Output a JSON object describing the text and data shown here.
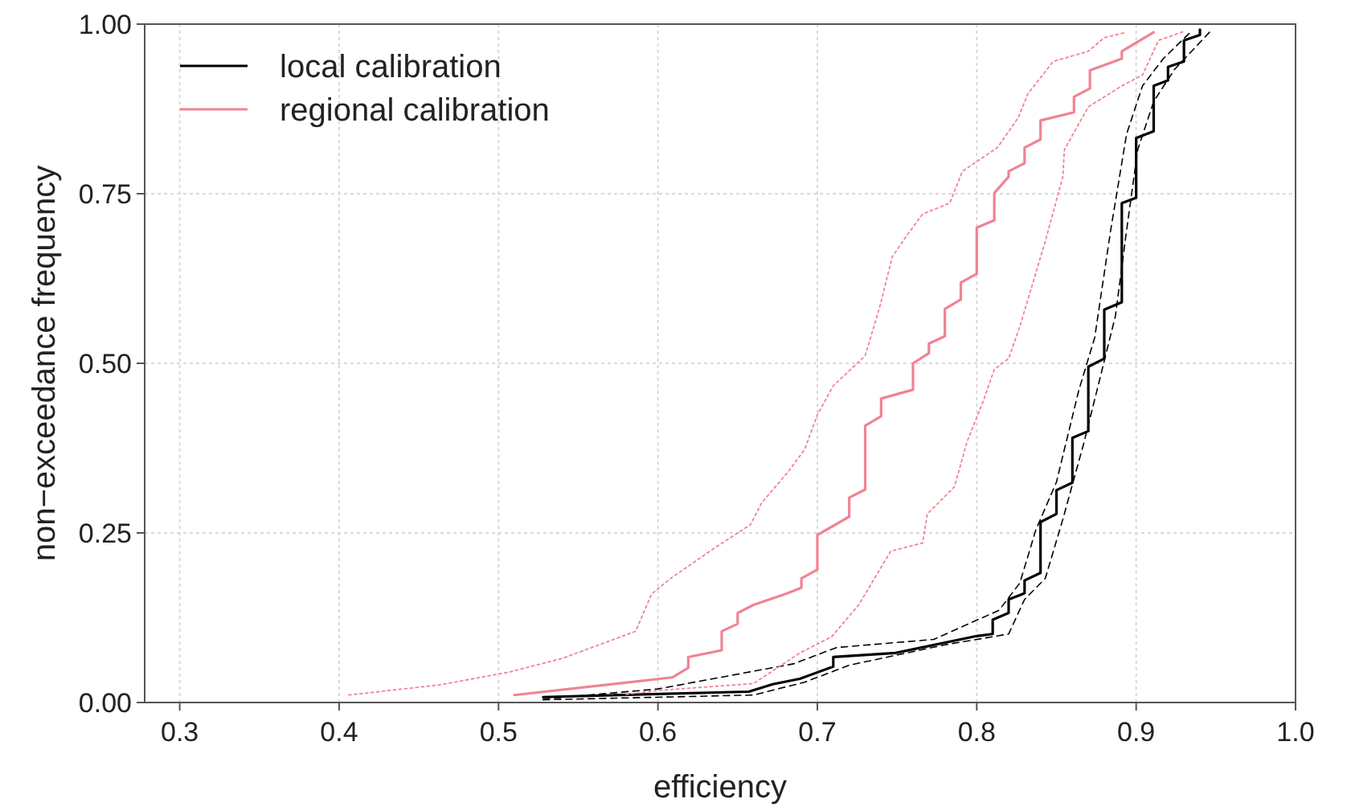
{
  "chart_data": {
    "type": "line",
    "xlabel": "efficiency",
    "ylabel": "non−exceedance frequency",
    "xlim": [
      0.278,
      1.0
    ],
    "ylim": [
      0,
      1
    ],
    "xticks": [
      0.3,
      0.4,
      0.5,
      0.6,
      0.7,
      0.8,
      0.9,
      {
        "value": 1.0,
        "label": "1.0"
      }
    ],
    "yticks": [
      {
        "value": 0,
        "label": "0.00"
      },
      {
        "value": 0.25,
        "label": "0.25"
      },
      {
        "value": 0.5,
        "label": "0.50"
      },
      {
        "value": 0.75,
        "label": "0.75"
      },
      {
        "value": 1,
        "label": "1.00"
      }
    ],
    "grid": true,
    "legend": "top left",
    "marker": "none",
    "series": [
      {
        "name": "local calibration",
        "color": "#000000",
        "line_style": "solid",
        "x": [
          0.528,
          0.657,
          0.672,
          0.689,
          0.71,
          0.71,
          0.749,
          0.8,
          0.81,
          0.81,
          0.82,
          0.82,
          0.83,
          0.83,
          0.84,
          0.84,
          0.85,
          0.85,
          0.86,
          0.86,
          0.87,
          0.87,
          0.88,
          0.88,
          0.891,
          0.891,
          0.9,
          0.9,
          0.911,
          0.911,
          0.92,
          0.92,
          0.93,
          0.93,
          0.94,
          0.94
        ],
        "values": [
          0.008,
          0.016,
          0.027,
          0.035,
          0.053,
          0.067,
          0.073,
          0.098,
          0.101,
          0.122,
          0.132,
          0.152,
          0.161,
          0.18,
          0.191,
          0.266,
          0.278,
          0.313,
          0.324,
          0.39,
          0.4,
          0.495,
          0.507,
          0.579,
          0.59,
          0.736,
          0.744,
          0.832,
          0.842,
          0.909,
          0.917,
          0.937,
          0.945,
          0.976,
          0.984,
          0.992
        ]
      },
      {
        "name": "regional calibration",
        "color": "#f08392",
        "line_style": "solid",
        "x": [
          0.51,
          0.609,
          0.619,
          0.619,
          0.64,
          0.64,
          0.65,
          0.65,
          0.66,
          0.68,
          0.69,
          0.69,
          0.7,
          0.7,
          0.72,
          0.72,
          0.73,
          0.73,
          0.74,
          0.74,
          0.76,
          0.76,
          0.77,
          0.77,
          0.78,
          0.78,
          0.79,
          0.79,
          0.8,
          0.8,
          0.811,
          0.811,
          0.82,
          0.82,
          0.83,
          0.83,
          0.84,
          0.84,
          0.861,
          0.861,
          0.871,
          0.871,
          0.891,
          0.891,
          0.911
        ],
        "values": [
          0.011,
          0.037,
          0.051,
          0.067,
          0.077,
          0.105,
          0.116,
          0.132,
          0.144,
          0.16,
          0.169,
          0.183,
          0.196,
          0.247,
          0.274,
          0.302,
          0.314,
          0.408,
          0.422,
          0.448,
          0.461,
          0.5,
          0.515,
          0.529,
          0.54,
          0.58,
          0.594,
          0.619,
          0.632,
          0.7,
          0.711,
          0.751,
          0.775,
          0.783,
          0.795,
          0.818,
          0.83,
          0.858,
          0.87,
          0.893,
          0.905,
          0.932,
          0.949,
          0.96,
          0.988
        ]
      },
      {
        "color": "#000000",
        "line_style": "dashed",
        "x": [
          0.528,
          0.6,
          0.685,
          0.712,
          0.773,
          0.814,
          0.827,
          0.837,
          0.85,
          0.864,
          0.874,
          0.884,
          0.894,
          0.904,
          0.917,
          0.934
        ],
        "values": [
          0.005,
          0.02,
          0.057,
          0.081,
          0.093,
          0.136,
          0.176,
          0.254,
          0.325,
          0.46,
          0.538,
          0.696,
          0.838,
          0.909,
          0.949,
          0.988
        ]
      },
      {
        "color": "#000000",
        "line_style": "dashed",
        "x": [
          0.528,
          0.66,
          0.692,
          0.72,
          0.78,
          0.82,
          0.83,
          0.843,
          0.854,
          0.867,
          0.877,
          0.887,
          0.894,
          0.901,
          0.911,
          0.924,
          0.946
        ],
        "values": [
          0.004,
          0.011,
          0.03,
          0.055,
          0.085,
          0.101,
          0.152,
          0.183,
          0.27,
          0.381,
          0.475,
          0.57,
          0.696,
          0.815,
          0.886,
          0.933,
          0.988
        ]
      },
      {
        "color": "#f08392",
        "line_style": "dotted",
        "x": [
          0.406,
          0.463,
          0.507,
          0.54,
          0.586,
          0.596,
          0.608,
          0.635,
          0.658,
          0.665,
          0.682,
          0.692,
          0.7,
          0.71,
          0.73,
          0.739,
          0.747,
          0.756,
          0.766,
          0.783,
          0.791,
          0.813,
          0.826,
          0.832,
          0.848,
          0.87,
          0.88,
          0.894
        ],
        "values": [
          0.011,
          0.026,
          0.045,
          0.065,
          0.105,
          0.16,
          0.183,
          0.227,
          0.262,
          0.294,
          0.341,
          0.373,
          0.424,
          0.467,
          0.511,
          0.582,
          0.657,
          0.688,
          0.72,
          0.736,
          0.783,
          0.818,
          0.862,
          0.897,
          0.945,
          0.96,
          0.98,
          0.988
        ]
      },
      {
        "color": "#f08392",
        "line_style": "dotted",
        "x": [
          0.58,
          0.601,
          0.66,
          0.689,
          0.709,
          0.726,
          0.746,
          0.766,
          0.769,
          0.786,
          0.794,
          0.804,
          0.811,
          0.82,
          0.827,
          0.843,
          0.854,
          0.855,
          0.87,
          0.891,
          0.904,
          0.914,
          0.931
        ],
        "values": [
          0.012,
          0.018,
          0.028,
          0.073,
          0.097,
          0.144,
          0.223,
          0.235,
          0.278,
          0.318,
          0.385,
          0.444,
          0.491,
          0.507,
          0.554,
          0.68,
          0.775,
          0.815,
          0.878,
          0.909,
          0.925,
          0.976,
          0.99
        ]
      }
    ]
  }
}
